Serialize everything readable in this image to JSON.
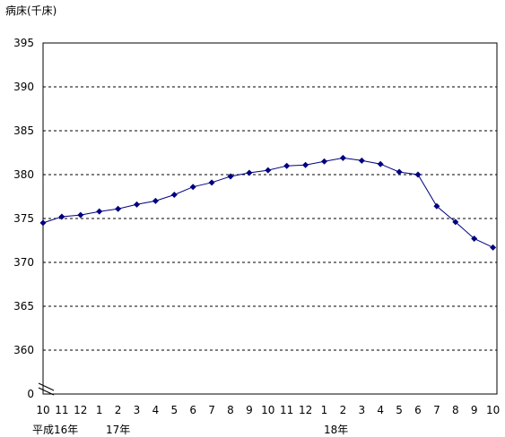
{
  "chart_data": {
    "type": "line",
    "ylabel": "病床(千床)",
    "y_ticks": [
      "395",
      "390",
      "385",
      "380",
      "375",
      "370",
      "365",
      "360",
      "0"
    ],
    "ylim": [
      355,
      395
    ],
    "y_axis_break": true,
    "grid": "horizontal dashed",
    "x_ticks": [
      "10",
      "11",
      "12",
      "1",
      "2",
      "3",
      "4",
      "5",
      "6",
      "7",
      "8",
      "9",
      "10",
      "11",
      "12",
      "1",
      "2",
      "3",
      "4",
      "5",
      "6",
      "7",
      "8",
      "9",
      "10"
    ],
    "year_labels": [
      "平成16年",
      "17年",
      "18年"
    ],
    "series": [
      {
        "color": "#000080",
        "marker": "diamond",
        "values": [
          374.5,
          375.2,
          375.4,
          375.8,
          376.1,
          376.6,
          377.0,
          377.7,
          378.6,
          379.1,
          379.8,
          380.2,
          380.5,
          381.0,
          381.1,
          381.5,
          381.9,
          381.6,
          381.2,
          380.3,
          380.0,
          376.4,
          374.6,
          372.7,
          371.7
        ]
      }
    ]
  }
}
